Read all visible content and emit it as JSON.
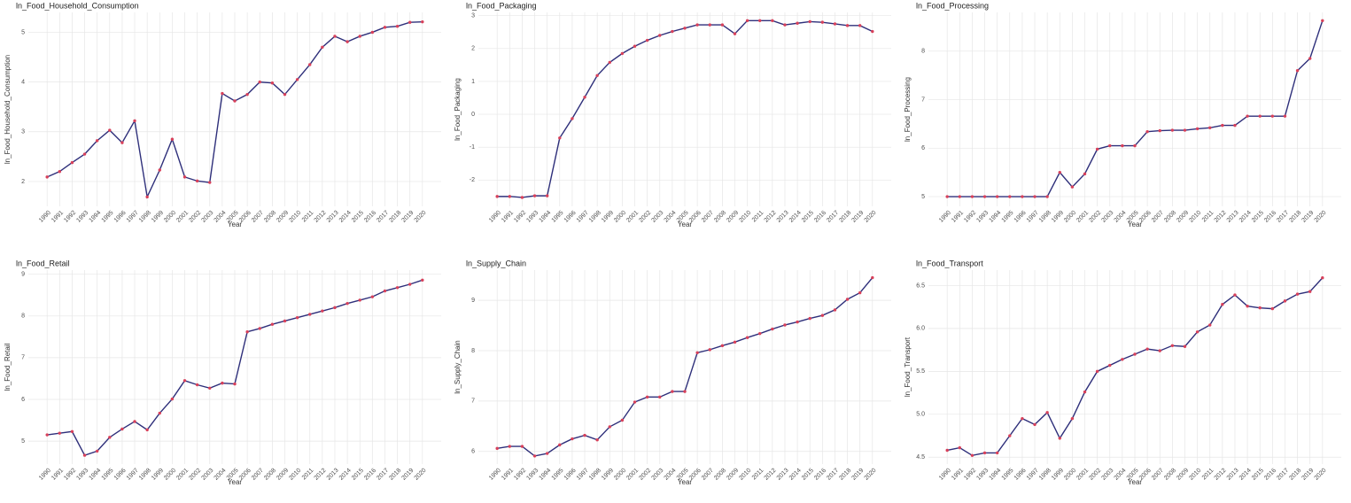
{
  "chart_data": [
    {
      "type": "line",
      "title": "ln_Food_Household_Consumption",
      "x_label": "Year",
      "y_label": "ln_Food_Household_Consumption",
      "grid": true,
      "x": [
        1990,
        1991,
        1992,
        1993,
        1994,
        1995,
        1996,
        1997,
        1998,
        1999,
        2000,
        2001,
        2002,
        2003,
        2004,
        2005,
        2006,
        2007,
        2008,
        2009,
        2010,
        2011,
        2012,
        2013,
        2014,
        2015,
        2016,
        2017,
        2018,
        2019,
        2020
      ],
      "xlim": [
        1988.5,
        2021.5
      ],
      "xticks": [
        1990,
        1991,
        1992,
        1993,
        1994,
        1995,
        1996,
        1997,
        1998,
        1999,
        2000,
        2001,
        2002,
        2003,
        2004,
        2005,
        2006,
        2007,
        2008,
        2009,
        2010,
        2011,
        2012,
        2013,
        2014,
        2015,
        2016,
        2017,
        2018,
        2019,
        2020
      ],
      "ylim": [
        1.5,
        5.4
      ],
      "yticks": [
        2,
        3,
        4,
        5
      ],
      "series": [
        {
          "color": "#2e2f7a",
          "point_color": "#d8405a",
          "values": [
            2.09,
            2.2,
            2.38,
            2.55,
            2.82,
            3.03,
            2.78,
            3.22,
            1.69,
            2.23,
            2.85,
            2.09,
            2.01,
            1.98,
            3.77,
            3.62,
            3.75,
            4.0,
            3.98,
            3.75,
            4.05,
            4.35,
            4.7,
            4.92,
            4.81,
            4.92,
            5.0,
            5.1,
            5.12,
            5.2,
            5.21
          ]
        }
      ]
    },
    {
      "type": "line",
      "title": "ln_Food_Packaging",
      "x_label": "Year",
      "y_label": "ln_Food_Packaging",
      "grid": true,
      "x": [
        1990,
        1991,
        1992,
        1993,
        1994,
        1995,
        1996,
        1997,
        1998,
        1999,
        2000,
        2001,
        2002,
        2003,
        2004,
        2005,
        2006,
        2007,
        2008,
        2009,
        2010,
        2011,
        2012,
        2013,
        2014,
        2015,
        2016,
        2017,
        2018,
        2019,
        2020
      ],
      "xlim": [
        1988.5,
        2021.5
      ],
      "xticks": [
        1990,
        1991,
        1992,
        1993,
        1994,
        1995,
        1996,
        1997,
        1998,
        1999,
        2000,
        2001,
        2002,
        2003,
        2004,
        2005,
        2006,
        2007,
        2008,
        2009,
        2010,
        2011,
        2012,
        2013,
        2014,
        2015,
        2016,
        2017,
        2018,
        2019,
        2020
      ],
      "ylim": [
        -2.8,
        3.1
      ],
      "yticks": [
        -2,
        -1,
        0,
        1,
        2,
        3
      ],
      "series": [
        {
          "color": "#2e2f7a",
          "point_color": "#d8405a",
          "values": [
            -2.5,
            -2.5,
            -2.53,
            -2.48,
            -2.48,
            -0.72,
            -0.13,
            0.52,
            1.18,
            1.58,
            1.85,
            2.07,
            2.25,
            2.4,
            2.52,
            2.62,
            2.72,
            2.72,
            2.72,
            2.45,
            2.85,
            2.85,
            2.85,
            2.72,
            2.77,
            2.82,
            2.8,
            2.75,
            2.7,
            2.7,
            2.52
          ]
        }
      ]
    },
    {
      "type": "line",
      "title": "ln_Food_Processing",
      "x_label": "Year",
      "y_label": "ln_Food_Processing",
      "grid": true,
      "x": [
        1990,
        1991,
        1992,
        1993,
        1994,
        1995,
        1996,
        1997,
        1998,
        1999,
        2000,
        2001,
        2002,
        2003,
        2004,
        2005,
        2006,
        2007,
        2008,
        2009,
        2010,
        2011,
        2012,
        2013,
        2014,
        2015,
        2016,
        2017,
        2018,
        2019,
        2020
      ],
      "xlim": [
        1988.5,
        2021.5
      ],
      "xticks": [
        1990,
        1991,
        1992,
        1993,
        1994,
        1995,
        1996,
        1997,
        1998,
        1999,
        2000,
        2001,
        2002,
        2003,
        2004,
        2005,
        2006,
        2007,
        2008,
        2009,
        2010,
        2011,
        2012,
        2013,
        2014,
        2015,
        2016,
        2017,
        2018,
        2019,
        2020
      ],
      "ylim": [
        4.8,
        8.8
      ],
      "yticks": [
        5,
        6,
        7,
        8
      ],
      "series": [
        {
          "color": "#2e2f7a",
          "point_color": "#d8405a",
          "values": [
            5.0,
            5.0,
            5.0,
            5.0,
            5.0,
            5.0,
            5.0,
            5.0,
            5.0,
            5.5,
            5.2,
            5.47,
            5.98,
            6.05,
            6.05,
            6.05,
            6.34,
            6.36,
            6.37,
            6.37,
            6.4,
            6.42,
            6.47,
            6.47,
            6.66,
            6.66,
            6.66,
            6.66,
            7.6,
            7.85,
            8.63
          ]
        }
      ]
    },
    {
      "type": "line",
      "title": "ln_Food_Retail",
      "x_label": "Year",
      "y_label": "ln_Food_Retail",
      "grid": true,
      "x": [
        1990,
        1991,
        1992,
        1993,
        1994,
        1995,
        1996,
        1997,
        1998,
        1999,
        2000,
        2001,
        2002,
        2003,
        2004,
        2005,
        2006,
        2007,
        2008,
        2009,
        2010,
        2011,
        2012,
        2013,
        2014,
        2015,
        2016,
        2017,
        2018,
        2019,
        2020
      ],
      "xlim": [
        1988.5,
        2021.5
      ],
      "xticks": [
        1990,
        1991,
        1992,
        1993,
        1994,
        1995,
        1996,
        1997,
        1998,
        1999,
        2000,
        2001,
        2002,
        2003,
        2004,
        2005,
        2006,
        2007,
        2008,
        2009,
        2010,
        2011,
        2012,
        2013,
        2014,
        2015,
        2016,
        2017,
        2018,
        2019,
        2020
      ],
      "ylim": [
        4.45,
        9.1
      ],
      "yticks": [
        5,
        6,
        7,
        8,
        9
      ],
      "series": [
        {
          "color": "#2e2f7a",
          "point_color": "#d8405a",
          "values": [
            5.15,
            5.19,
            5.23,
            4.66,
            4.76,
            5.09,
            5.29,
            5.47,
            5.27,
            5.67,
            6.01,
            6.45,
            6.35,
            6.27,
            6.39,
            6.37,
            7.62,
            7.7,
            7.8,
            7.88,
            7.96,
            8.04,
            8.12,
            8.2,
            8.3,
            8.38,
            8.46,
            8.6,
            8.68,
            8.76,
            8.86
          ]
        }
      ]
    },
    {
      "type": "line",
      "title": "ln_Supply_Chain",
      "x_label": "Year",
      "y_label": "ln_Supply_Chain",
      "grid": true,
      "x": [
        1990,
        1991,
        1992,
        1993,
        1994,
        1995,
        1996,
        1997,
        1998,
        1999,
        2000,
        2001,
        2002,
        2003,
        2004,
        2005,
        2006,
        2007,
        2008,
        2009,
        2010,
        2011,
        2012,
        2013,
        2014,
        2015,
        2016,
        2017,
        2018,
        2019,
        2020
      ],
      "xlim": [
        1988.5,
        2021.5
      ],
      "xticks": [
        1990,
        1991,
        1992,
        1993,
        1994,
        1995,
        1996,
        1997,
        1998,
        1999,
        2000,
        2001,
        2002,
        2003,
        2004,
        2005,
        2006,
        2007,
        2008,
        2009,
        2010,
        2011,
        2012,
        2013,
        2014,
        2015,
        2016,
        2017,
        2018,
        2019,
        2020
      ],
      "ylim": [
        5.75,
        9.6
      ],
      "yticks": [
        6,
        7,
        8,
        9
      ],
      "series": [
        {
          "color": "#2e2f7a",
          "point_color": "#d8405a",
          "values": [
            6.06,
            6.1,
            6.1,
            5.91,
            5.96,
            6.13,
            6.25,
            6.32,
            6.23,
            6.49,
            6.62,
            6.98,
            7.08,
            7.08,
            7.19,
            7.19,
            7.96,
            8.02,
            8.1,
            8.17,
            8.26,
            8.34,
            8.43,
            8.51,
            8.57,
            8.64,
            8.7,
            8.81,
            9.02,
            9.15,
            9.45
          ]
        }
      ]
    },
    {
      "type": "line",
      "title": "ln_Food_Transport",
      "x_label": "Year",
      "y_label": "ln_Food_Transport",
      "grid": true,
      "x": [
        1990,
        1991,
        1992,
        1993,
        1994,
        1995,
        1996,
        1997,
        1998,
        1999,
        2000,
        2001,
        2002,
        2003,
        2004,
        2005,
        2006,
        2007,
        2008,
        2009,
        2010,
        2011,
        2012,
        2013,
        2014,
        2015,
        2016,
        2017,
        2018,
        2019,
        2020
      ],
      "xlim": [
        1988.5,
        2021.5
      ],
      "xticks": [
        1990,
        1991,
        1992,
        1993,
        1994,
        1995,
        1996,
        1997,
        1998,
        1999,
        2000,
        2001,
        2002,
        2003,
        2004,
        2005,
        2006,
        2007,
        2008,
        2009,
        2010,
        2011,
        2012,
        2013,
        2014,
        2015,
        2016,
        2017,
        2018,
        2019,
        2020
      ],
      "ylim": [
        4.42,
        6.68
      ],
      "yticks": [
        4.5,
        {
          "value": 5,
          "label": "5.0"
        },
        5.5,
        {
          "value": 6,
          "label": "6.0"
        },
        6.5
      ],
      "series": [
        {
          "color": "#2e2f7a",
          "point_color": "#d8405a",
          "values": [
            4.58,
            4.61,
            4.52,
            4.55,
            4.55,
            4.75,
            4.95,
            4.88,
            5.02,
            4.72,
            4.95,
            5.26,
            5.5,
            5.57,
            5.64,
            5.7,
            5.76,
            5.74,
            5.8,
            5.79,
            5.96,
            6.04,
            6.28,
            6.39,
            6.26,
            6.24,
            6.23,
            6.32,
            6.4,
            6.43,
            6.59
          ]
        }
      ]
    }
  ]
}
